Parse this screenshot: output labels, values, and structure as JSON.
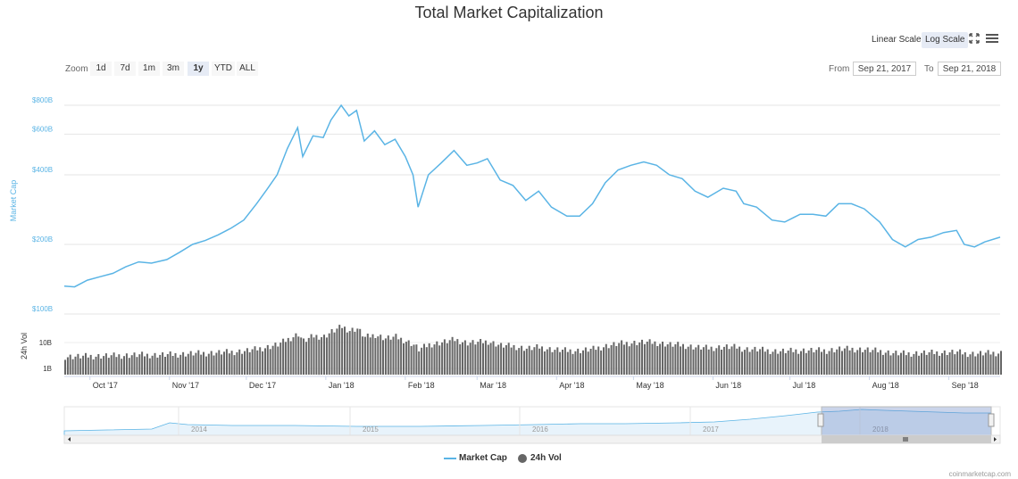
{
  "chart_data": {
    "type": "line",
    "title": "Total Market Capitalization",
    "scale": "log",
    "y_ticks": [
      {
        "label": "$100B",
        "value": 100
      },
      {
        "label": "$200B",
        "value": 200
      },
      {
        "label": "$400B",
        "value": 400
      },
      {
        "label": "$600B",
        "value": 600
      },
      {
        "label": "$800B",
        "value": 800
      }
    ],
    "y_axis_label": "Market Cap",
    "x_ticks": [
      {
        "label": "Oct '17",
        "date": "2017-10-01"
      },
      {
        "label": "Nov '17",
        "date": "2017-11-01"
      },
      {
        "label": "Dec '17",
        "date": "2017-12-01"
      },
      {
        "label": "Jan '18",
        "date": "2018-01-01"
      },
      {
        "label": "Feb '18",
        "date": "2018-02-01"
      },
      {
        "label": "Mar '18",
        "date": "2018-03-01"
      },
      {
        "label": "Apr '18",
        "date": "2018-04-01"
      },
      {
        "label": "May '18",
        "date": "2018-05-01"
      },
      {
        "label": "Jun '18",
        "date": "2018-06-01"
      },
      {
        "label": "Jul '18",
        "date": "2018-07-01"
      },
      {
        "label": "Aug '18",
        "date": "2018-08-01"
      },
      {
        "label": "Sep '18",
        "date": "2018-09-01"
      }
    ],
    "x_range": [
      "2017-09-21",
      "2018-09-21"
    ],
    "series": [
      {
        "name": "Market Cap",
        "color": "#5ab4e5",
        "unit": "USD billions",
        "points": [
          [
            "2017-09-21",
            132
          ],
          [
            "2017-09-25",
            131
          ],
          [
            "2017-09-30",
            140
          ],
          [
            "2017-10-05",
            145
          ],
          [
            "2017-10-10",
            150
          ],
          [
            "2017-10-15",
            160
          ],
          [
            "2017-10-20",
            168
          ],
          [
            "2017-10-25",
            166
          ],
          [
            "2017-10-31",
            172
          ],
          [
            "2017-11-05",
            185
          ],
          [
            "2017-11-10",
            200
          ],
          [
            "2017-11-15",
            208
          ],
          [
            "2017-11-20",
            220
          ],
          [
            "2017-11-25",
            235
          ],
          [
            "2017-11-30",
            255
          ],
          [
            "2017-12-05",
            300
          ],
          [
            "2017-12-09",
            345
          ],
          [
            "2017-12-13",
            400
          ],
          [
            "2017-12-17",
            520
          ],
          [
            "2017-12-21",
            640
          ],
          [
            "2017-12-23",
            480
          ],
          [
            "2017-12-27",
            590
          ],
          [
            "2017-12-31",
            580
          ],
          [
            "2018-01-03",
            690
          ],
          [
            "2018-01-07",
            800
          ],
          [
            "2018-01-10",
            720
          ],
          [
            "2018-01-13",
            760
          ],
          [
            "2018-01-16",
            560
          ],
          [
            "2018-01-20",
            620
          ],
          [
            "2018-01-24",
            540
          ],
          [
            "2018-01-28",
            570
          ],
          [
            "2018-02-01",
            480
          ],
          [
            "2018-02-04",
            400
          ],
          [
            "2018-02-06",
            290
          ],
          [
            "2018-02-10",
            400
          ],
          [
            "2018-02-15",
            450
          ],
          [
            "2018-02-20",
            510
          ],
          [
            "2018-02-25",
            440
          ],
          [
            "2018-03-01",
            450
          ],
          [
            "2018-03-05",
            470
          ],
          [
            "2018-03-10",
            380
          ],
          [
            "2018-03-15",
            360
          ],
          [
            "2018-03-20",
            310
          ],
          [
            "2018-03-25",
            340
          ],
          [
            "2018-03-30",
            290
          ],
          [
            "2018-04-05",
            265
          ],
          [
            "2018-04-10",
            265
          ],
          [
            "2018-04-15",
            300
          ],
          [
            "2018-04-20",
            370
          ],
          [
            "2018-04-25",
            420
          ],
          [
            "2018-04-30",
            440
          ],
          [
            "2018-05-05",
            455
          ],
          [
            "2018-05-10",
            440
          ],
          [
            "2018-05-15",
            400
          ],
          [
            "2018-05-20",
            385
          ],
          [
            "2018-05-25",
            340
          ],
          [
            "2018-05-30",
            320
          ],
          [
            "2018-06-05",
            350
          ],
          [
            "2018-06-10",
            340
          ],
          [
            "2018-06-13",
            300
          ],
          [
            "2018-06-18",
            290
          ],
          [
            "2018-06-24",
            255
          ],
          [
            "2018-06-29",
            250
          ],
          [
            "2018-07-05",
            270
          ],
          [
            "2018-07-10",
            270
          ],
          [
            "2018-07-15",
            265
          ],
          [
            "2018-07-20",
            300
          ],
          [
            "2018-07-25",
            300
          ],
          [
            "2018-07-30",
            285
          ],
          [
            "2018-08-05",
            250
          ],
          [
            "2018-08-10",
            210
          ],
          [
            "2018-08-15",
            195
          ],
          [
            "2018-08-20",
            210
          ],
          [
            "2018-08-25",
            215
          ],
          [
            "2018-08-30",
            225
          ],
          [
            "2018-09-04",
            230
          ],
          [
            "2018-09-07",
            200
          ],
          [
            "2018-09-11",
            195
          ],
          [
            "2018-09-15",
            205
          ],
          [
            "2018-09-21",
            215
          ]
        ]
      },
      {
        "name": "24h Vol",
        "color": "#666666",
        "scale": "log",
        "y_ticks": [
          {
            "label": "1B",
            "value": 1
          },
          {
            "label": "10B",
            "value": 10
          }
        ]
      }
    ],
    "legend_position": "bottom-center",
    "grid": true
  },
  "navigator": {
    "year_labels": [
      "2014",
      "2015",
      "2016",
      "2017",
      "2018"
    ]
  },
  "controls": {
    "scale_buttons": [
      "Linear Scale",
      "Log Scale"
    ],
    "selected_scale": "Log Scale",
    "zoom_label": "Zoom",
    "zoom_buttons": [
      "1d",
      "7d",
      "1m",
      "3m",
      "1y",
      "YTD",
      "ALL"
    ],
    "selected_zoom": "1y",
    "from_label": "From",
    "from_value": "Sep 21, 2017",
    "to_label": "To",
    "to_value": "Sep 21, 2018"
  },
  "credits": "coinmarketcap.com",
  "icons": [
    "fullscreen-icon",
    "menu-icon"
  ]
}
